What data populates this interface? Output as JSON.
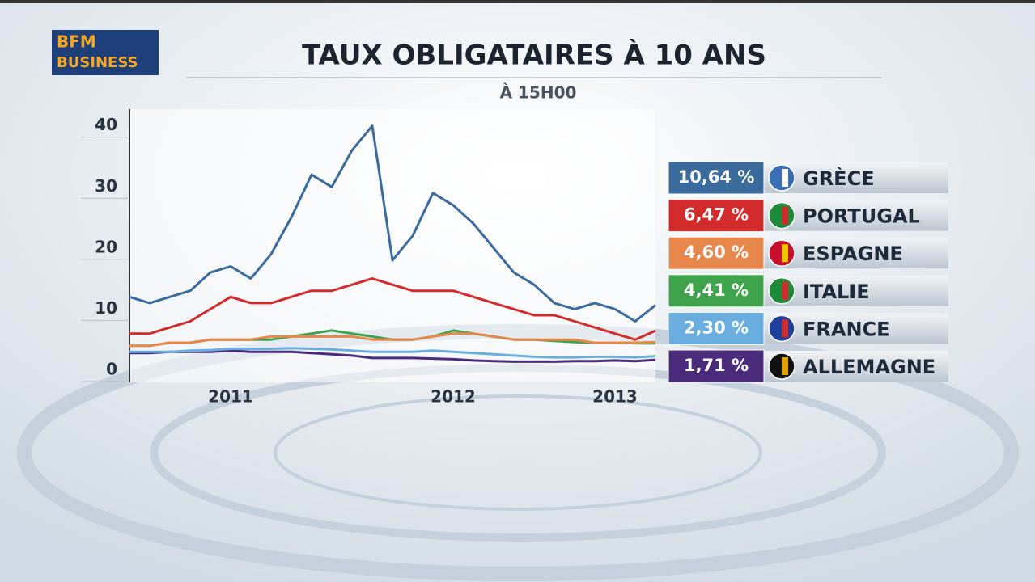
{
  "channel": {
    "line1": "BFM",
    "line2": "BUSINESS"
  },
  "chart_data": {
    "type": "line",
    "title": "TAUX OBLIGATAIRES À 10 ANS",
    "subtitle": "À 15H00",
    "categories": [
      null,
      null,
      null,
      null,
      null,
      "2011",
      null,
      null,
      null,
      null,
      null,
      null,
      null,
      null,
      null,
      null,
      "2012",
      null,
      null,
      null,
      null,
      null,
      null,
      null,
      "2013",
      null,
      null
    ],
    "ylim": [
      0,
      43
    ],
    "yticks": [
      0,
      10,
      20,
      30,
      40
    ],
    "grid": true,
    "series": [
      {
        "name": "GRÈCE",
        "color": "#3b6b9c",
        "values": [
          12,
          11,
          12,
          13,
          16,
          17,
          15,
          19,
          25,
          32,
          30,
          36,
          40,
          18,
          22,
          29,
          27,
          24,
          20,
          16,
          14,
          11,
          10,
          11,
          10,
          8,
          10.64
        ],
        "value_labels": [
          null,
          null,
          null,
          null,
          null,
          null,
          null,
          null,
          null,
          null,
          null,
          null,
          null,
          null,
          null,
          null,
          null,
          null,
          null,
          null,
          null,
          null,
          null,
          null,
          null,
          null,
          "10,64 %"
        ]
      },
      {
        "name": "PORTUGAL",
        "color": "#d22b2b",
        "values": [
          6,
          6,
          7,
          8,
          10,
          12,
          11,
          11,
          12,
          13,
          13,
          14,
          15,
          14,
          13,
          13,
          13,
          12,
          11,
          10,
          9,
          9,
          8,
          7,
          6,
          5,
          6.47
        ],
        "value_labels": [
          null,
          null,
          null,
          null,
          null,
          null,
          null,
          null,
          null,
          null,
          null,
          null,
          null,
          null,
          null,
          null,
          null,
          null,
          null,
          null,
          null,
          null,
          null,
          null,
          null,
          null,
          "6,47 %"
        ]
      },
      {
        "name": "ESPAGNE",
        "color": "#e8874b",
        "values": [
          4,
          4,
          4.5,
          4.5,
          5,
          5,
          5,
          5.5,
          5.5,
          5.5,
          5.5,
          5.5,
          5,
          5,
          5,
          5.5,
          6,
          6,
          5.5,
          5,
          5,
          5,
          5,
          4.5,
          4.5,
          4.5,
          4.6
        ],
        "value_labels": [
          null,
          null,
          null,
          null,
          null,
          null,
          null,
          null,
          null,
          null,
          null,
          null,
          null,
          null,
          null,
          null,
          null,
          null,
          null,
          null,
          null,
          null,
          null,
          null,
          null,
          null,
          "4,60 %"
        ]
      },
      {
        "name": "ITALIE",
        "color": "#3fa34b",
        "values": [
          4,
          4,
          4.5,
          4.5,
          5,
          5,
          5,
          5,
          5.5,
          6,
          6.5,
          6,
          5.5,
          5,
          5,
          5.5,
          6.5,
          6,
          5.5,
          5,
          5,
          4.8,
          4.6,
          4.5,
          4.5,
          4.4,
          4.41
        ],
        "value_labels": [
          null,
          null,
          null,
          null,
          null,
          null,
          null,
          null,
          null,
          null,
          null,
          null,
          null,
          null,
          null,
          null,
          null,
          null,
          null,
          null,
          null,
          null,
          null,
          null,
          null,
          null,
          "4,41 %"
        ]
      },
      {
        "name": "FRANCE",
        "color": "#6aaee0",
        "values": [
          3,
          3,
          3,
          3.2,
          3.3,
          3.5,
          3.5,
          3.5,
          3.6,
          3.5,
          3.4,
          3.2,
          3,
          3,
          3,
          3.2,
          3,
          2.8,
          2.6,
          2.4,
          2.2,
          2.1,
          2.1,
          2.2,
          2.2,
          2.1,
          2.3
        ],
        "value_labels": [
          null,
          null,
          null,
          null,
          null,
          null,
          null,
          null,
          null,
          null,
          null,
          null,
          null,
          null,
          null,
          null,
          null,
          null,
          null,
          null,
          null,
          null,
          null,
          null,
          null,
          null,
          "2,30 %"
        ]
      },
      {
        "name": "ALLEMAGNE",
        "color": "#4b2b7b",
        "values": [
          2.8,
          2.8,
          3,
          3,
          3,
          3.2,
          3,
          3,
          3,
          2.8,
          2.6,
          2.4,
          2,
          2,
          2,
          1.9,
          1.8,
          1.6,
          1.5,
          1.4,
          1.4,
          1.4,
          1.5,
          1.5,
          1.6,
          1.5,
          1.71
        ],
        "value_labels": [
          null,
          null,
          null,
          null,
          null,
          null,
          null,
          null,
          null,
          null,
          null,
          null,
          null,
          null,
          null,
          null,
          null,
          null,
          null,
          null,
          null,
          null,
          null,
          null,
          null,
          null,
          "1,71 %"
        ]
      }
    ]
  }
}
